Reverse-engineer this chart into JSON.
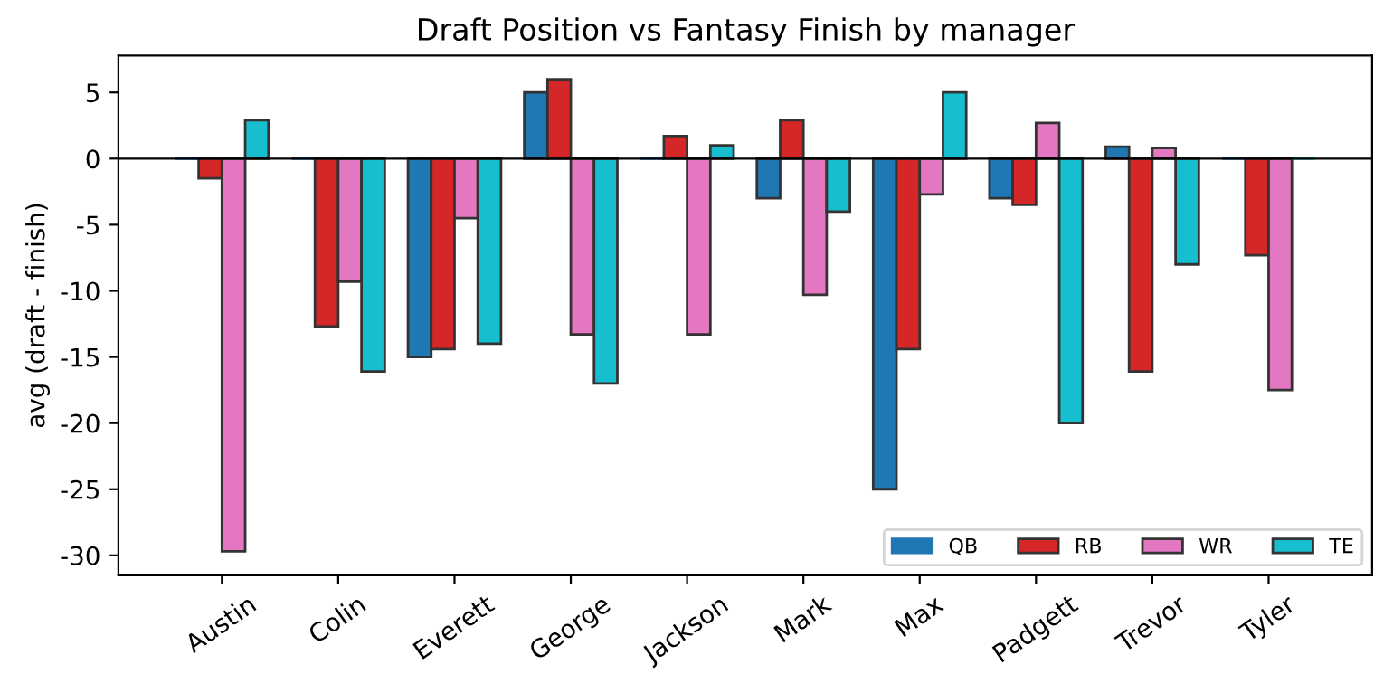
{
  "chart_data": {
    "type": "bar",
    "title": "Draft Position vs Fantasy Finish by manager",
    "ylabel": "avg (draft - finish)",
    "categories": [
      "Austin",
      "Colin",
      "Everett",
      "George",
      "Jackson",
      "Mark",
      "Max",
      "Padgett",
      "Trevor",
      "Tyler"
    ],
    "series": [
      {
        "name": "QB",
        "color": "#1f77b4",
        "values": [
          0,
          0,
          -15,
          5,
          0,
          -3,
          -25,
          -3,
          0.9,
          0
        ]
      },
      {
        "name": "RB",
        "color": "#d62728",
        "values": [
          -1.5,
          -12.7,
          -14.4,
          6,
          1.7,
          2.9,
          -14.4,
          -3.5,
          -16.1,
          -7.3
        ]
      },
      {
        "name": "WR",
        "color": "#e377c2",
        "values": [
          -29.7,
          -9.3,
          -4.5,
          -13.3,
          -13.3,
          -10.3,
          -2.7,
          2.7,
          0.8,
          -17.5
        ]
      },
      {
        "name": "TE",
        "color": "#17becf",
        "values": [
          2.9,
          -16.1,
          -14,
          -17,
          1.0,
          -4,
          5,
          -20,
          -8,
          0
        ]
      }
    ],
    "ylim": [
      -31.5,
      7.8
    ],
    "yticks": [
      -30,
      -25,
      -20,
      -15,
      -10,
      -5,
      0,
      5
    ],
    "ref_lines": [
      {
        "axis": "y",
        "value": 0,
        "color": "#000000"
      }
    ],
    "legend": "bottom right",
    "grid": false
  }
}
